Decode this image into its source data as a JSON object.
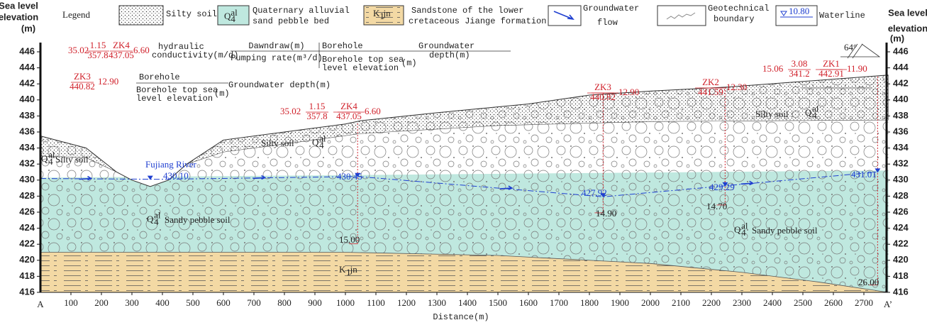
{
  "axes": {
    "left_title": [
      "Sea level",
      "elevation",
      "(m)"
    ],
    "right_title": [
      "Sea level",
      "elevation",
      "(m)"
    ],
    "yticks": [
      416,
      418,
      420,
      422,
      424,
      426,
      428,
      430,
      432,
      434,
      436,
      438,
      440,
      442,
      444,
      446
    ],
    "x_start": "A",
    "x_end": "A’",
    "xticks": [
      100,
      200,
      300,
      400,
      500,
      600,
      700,
      800,
      900,
      1000,
      1100,
      1200,
      1300,
      1400,
      1500,
      1600,
      1700,
      1800,
      1900,
      2000,
      2100,
      2200,
      2300,
      2400,
      2500,
      2600,
      2700
    ],
    "x_title": "Distance(m)"
  },
  "symbols": {
    "Q": {
      "base": "Q",
      "sub": "4",
      "sup": "al"
    },
    "K": {
      "base": "K",
      "sub": "1",
      "rest": "jn"
    }
  },
  "legend": {
    "title": "Legend",
    "silty": "Silty soil",
    "quaternary": [
      "Quaternary alluvial",
      "sand pebble bed"
    ],
    "sandstone": [
      "Sandstone of the lower",
      "cretaceous Jiange formation"
    ],
    "flow": [
      "Groundwater",
      "flow"
    ],
    "boundary": [
      "Geotechnical",
      "boundary"
    ],
    "waterline": "Waterline",
    "waterline_sample": "10.80"
  },
  "key1": {
    "k": "35.02",
    "drawdown": "1.15",
    "rate": "357.8",
    "name": "ZK4",
    "top": "437.05",
    "depth": "6.60",
    "k_label": [
      "hydraulic",
      "conductivity(m/d)"
    ],
    "drawdown_label": "Dawndraw(m)",
    "rate_label": "Pumping rate(m³/d)",
    "name_label": "Borehole",
    "top_label": [
      "Borehole top sea",
      "level elevation"
    ],
    "top_unit": "(m)",
    "depth_label": [
      "Groundwater",
      "depth(m)"
    ]
  },
  "key2": {
    "name": "ZK3",
    "top": "440.82",
    "depth": "12.90",
    "name_label": "Borehole",
    "top_label": [
      "Borehole top sea",
      "level elevation"
    ],
    "top_unit": "(m)",
    "depth_label": "Groundwater depth(m)"
  },
  "boreholes": [
    {
      "k": "35.02",
      "drawdown": "1.15",
      "rate": "357.8",
      "name": "ZK4",
      "top": "437.05",
      "depth": "6.60",
      "water": "430.45",
      "bottom": "15.00"
    },
    {
      "name": "ZK3",
      "top": "440.82",
      "depth": "12.90",
      "water": "427.92",
      "bottom": "14.90"
    },
    {
      "name": "ZK2",
      "top": "441.59",
      "depth": "12.30",
      "water": "429.29",
      "bottom": "14.70"
    },
    {
      "k": "15.06",
      "drawdown": "3.08",
      "rate": "341.2",
      "name": "ZK1",
      "top": "442.91",
      "depth": "11.90",
      "water": "431.01",
      "bottom": "26.00"
    }
  ],
  "labels": {
    "silty_left": "Silty soil",
    "silty_mid": "Silty soil",
    "silty_right": "Silty soil :",
    "river": "Fujiang River",
    "river_level": "430.10",
    "pebble_left": "Sandy pebble soil",
    "pebble_right": "Sandy pebble soil",
    "dip": "64°"
  }
}
